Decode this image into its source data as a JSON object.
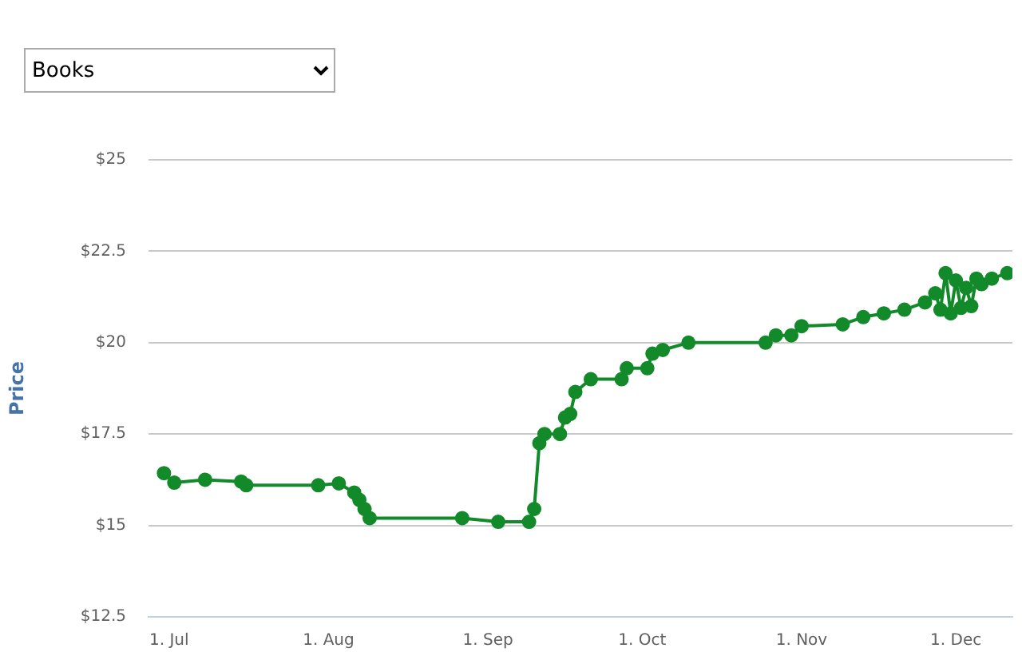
{
  "chart_data": {
    "type": "line",
    "subtitle": "Books",
    "ylabel": "Price",
    "marker": "circle",
    "line_style": "solid",
    "grid": "y",
    "legend": false,
    "x": [
      "--06-30",
      "--07-02",
      "--07-08",
      "--07-15",
      "--07-16",
      "--07-30",
      "--08-03",
      "--08-06",
      "--08-07",
      "--08-08",
      "--08-09",
      "--08-27",
      "--09-03",
      "--09-09",
      "--09-10",
      "--09-11",
      "--09-12",
      "--09-15",
      "--09-16",
      "--09-17",
      "--09-18",
      "--09-21",
      "--09-27",
      "--09-28",
      "--10-02",
      "--10-03",
      "--10-05",
      "--10-10",
      "--10-25",
      "--10-27",
      "--10-30",
      "--11-01",
      "--11-09",
      "--11-13",
      "--11-17",
      "--11-21",
      "--11-25",
      "--11-27",
      "--11-28",
      "--11-29",
      "--11-30",
      "--12-01",
      "--12-02",
      "--12-03",
      "--12-04",
      "--12-05",
      "--12-06",
      "--12-08",
      "--12-11"
    ],
    "series": [
      {
        "color": "#138a2a",
        "values": [
          16.43,
          16.17,
          16.25,
          16.2,
          16.1,
          16.1,
          16.15,
          15.9,
          15.7,
          15.45,
          15.2,
          15.2,
          15.1,
          15.1,
          15.45,
          17.25,
          17.5,
          17.5,
          17.95,
          18.05,
          18.65,
          19.0,
          19.0,
          19.3,
          19.3,
          19.7,
          19.8,
          20.0,
          20.0,
          20.2,
          20.2,
          20.45,
          20.5,
          20.7,
          20.8,
          20.9,
          21.1,
          21.35,
          20.9,
          21.9,
          20.8,
          21.7,
          20.95,
          21.5,
          21.0,
          21.75,
          21.6,
          21.75,
          21.9
        ]
      }
    ],
    "xlim": [
      "--06-27",
      "--12-12"
    ],
    "xticks": [
      {
        "value": "--07-01",
        "label": "1. Jul"
      },
      {
        "value": "--08-01",
        "label": "1. Aug"
      },
      {
        "value": "--09-01",
        "label": "1. Sep"
      },
      {
        "value": "--10-01",
        "label": "1. Oct"
      },
      {
        "value": "--11-01",
        "label": "1. Nov"
      },
      {
        "value": "--12-01",
        "label": "1. Dec"
      }
    ],
    "ylim": [
      12.5,
      25
    ],
    "yticks": [
      {
        "value": 12.5,
        "label": "$12.5"
      },
      {
        "value": 15,
        "label": "$15"
      },
      {
        "value": 17.5,
        "label": "$17.5"
      },
      {
        "value": 20,
        "label": "$20"
      },
      {
        "value": 22.5,
        "label": "$22.5"
      },
      {
        "value": 25,
        "label": "$25"
      }
    ]
  }
}
